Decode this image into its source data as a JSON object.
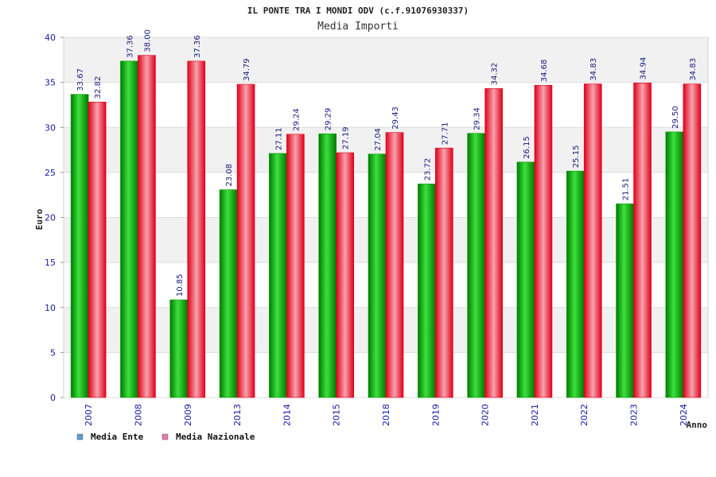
{
  "chart_data": {
    "type": "bar",
    "title": "IL PONTE TRA I MONDI ODV (c.f.91076930337)",
    "subtitle": "Media Importi",
    "xlabel": "Anno",
    "ylabel": "Euro",
    "ylim": [
      0,
      40
    ],
    "yticks": [
      0,
      5,
      10,
      15,
      20,
      25,
      30,
      35,
      40
    ],
    "grid": true,
    "legend_position": "bottom-left",
    "categories": [
      "2007",
      "2008",
      "2009",
      "2013",
      "2014",
      "2015",
      "2018",
      "2019",
      "2020",
      "2021",
      "2022",
      "2023",
      "2024"
    ],
    "series": [
      {
        "name": "Media Ente",
        "legend_color": "#5b9bd5",
        "bar_color": "#00b000",
        "values": [
          33.67,
          37.36,
          10.85,
          23.08,
          27.11,
          29.29,
          27.04,
          23.72,
          29.34,
          26.15,
          25.15,
          21.51,
          29.5
        ],
        "labels": [
          "33.67",
          "37.36",
          "10.85",
          "23.08",
          "27.11",
          "29.29",
          "27.04",
          "23.72",
          "29.34",
          "26.15",
          "25.15",
          "21.51",
          "29.50"
        ]
      },
      {
        "name": "Media Nazionale",
        "legend_color": "#e07ab0",
        "bar_color": "#e8192c",
        "values": [
          32.82,
          38.0,
          37.36,
          34.79,
          29.24,
          27.19,
          29.43,
          27.71,
          34.32,
          34.68,
          34.83,
          34.94,
          34.83
        ],
        "labels": [
          "32.82",
          "38.00",
          "37.36",
          "34.79",
          "29.24",
          "27.19",
          "29.43",
          "27.71",
          "34.32",
          "34.68",
          "34.83",
          "34.94",
          "34.83"
        ]
      }
    ]
  }
}
